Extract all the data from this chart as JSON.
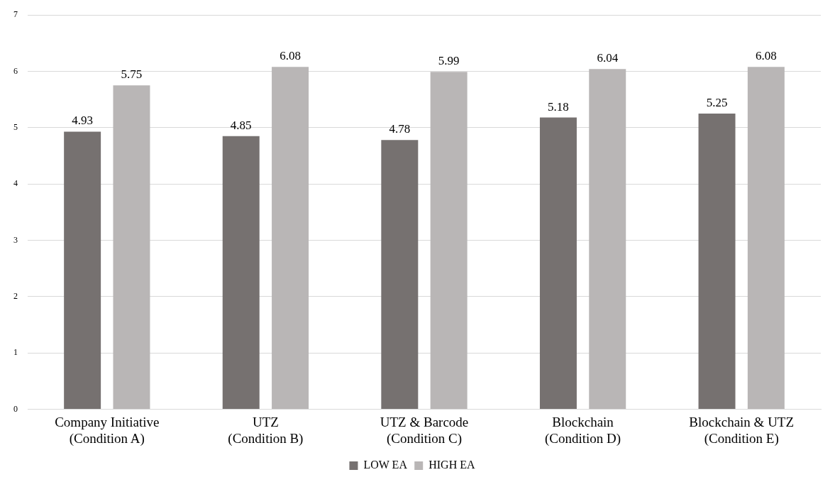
{
  "chart_data": {
    "type": "bar",
    "categories": [
      "Company Initiative\n(Condition A)",
      "UTZ\n(Condition B)",
      "UTZ & Barcode\n(Condition C)",
      "Blockchain\n(Condition D)",
      "Blockchain & UTZ\n(Condition E)"
    ],
    "series": [
      {
        "name": "LOW EA",
        "color": "#767170",
        "values": [
          4.93,
          4.85,
          4.78,
          5.18,
          5.25
        ]
      },
      {
        "name": "HIGH EA",
        "color": "#b9b6b6",
        "values": [
          5.75,
          6.08,
          5.99,
          6.04,
          6.08
        ]
      }
    ],
    "ylim": [
      0,
      7
    ],
    "yticks": [
      0,
      1,
      2,
      3,
      4,
      5,
      6,
      7
    ],
    "grid": "y",
    "legend": "bottom",
    "data_labels": true
  }
}
